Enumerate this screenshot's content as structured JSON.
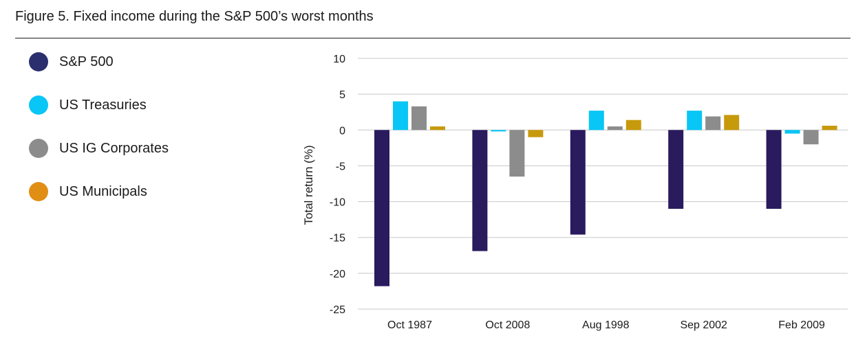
{
  "title": "Figure 5. Fixed income during the S&P 500’s worst months",
  "chart_data": {
    "type": "bar",
    "title": "Figure 5. Fixed income during the S&P 500’s worst months",
    "xlabel": "",
    "ylabel": "Total return (%)",
    "ylim": [
      -25,
      10
    ],
    "yticks": [
      10,
      5,
      0,
      -5,
      -10,
      -15,
      -20,
      -25
    ],
    "grid": true,
    "legend_position": "left",
    "categories": [
      "Oct 1987",
      "Oct 2008",
      "Aug 1998",
      "Sep 2002",
      "Feb 2009"
    ],
    "series": [
      {
        "name": "S&P 500",
        "color": "#2a1a5e",
        "legend_color": "#2b2f6e",
        "values": [
          -21.8,
          -16.9,
          -14.6,
          -11.0,
          -11.0
        ]
      },
      {
        "name": "US Treasuries",
        "color": "#08c6f5",
        "legend_color": "#08c6f5",
        "values": [
          4.0,
          -0.2,
          2.7,
          2.7,
          -0.5
        ]
      },
      {
        "name": "US IG Corporates",
        "color": "#8c8c8c",
        "legend_color": "#8c8c8c",
        "values": [
          3.3,
          -6.5,
          0.5,
          1.9,
          -2.0
        ]
      },
      {
        "name": "US Municipals",
        "color": "#c79a0c",
        "legend_color": "#e08e14",
        "values": [
          0.5,
          -1.0,
          1.4,
          2.1,
          0.6
        ]
      }
    ]
  }
}
